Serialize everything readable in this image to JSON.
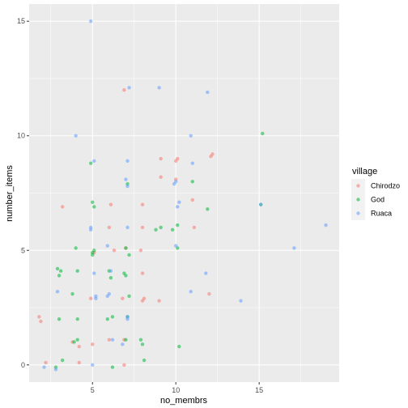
{
  "chart_data": {
    "type": "scatter",
    "xlabel": "no_membrs",
    "ylabel": "number_items",
    "xlim": [
      1.2,
      19.8
    ],
    "ylim": [
      -0.75,
      15.75
    ],
    "x_ticks": [
      5,
      10,
      15
    ],
    "y_ticks": [
      0,
      5,
      10,
      15
    ],
    "grid": true,
    "legend": {
      "title": "village",
      "placement": "right"
    },
    "series": [
      {
        "name": "Chirodzo",
        "color": "#F8766D",
        "points": [
          [
            1.8,
            2.1
          ],
          [
            1.9,
            1.9
          ],
          [
            2.2,
            0.1
          ],
          [
            3.2,
            6.9
          ],
          [
            3.8,
            1.0
          ],
          [
            4.2,
            0.8
          ],
          [
            4.2,
            0.1
          ],
          [
            4.9,
            2.9
          ],
          [
            5.0,
            0.9
          ],
          [
            5.1,
            4.9
          ],
          [
            6.0,
            6.0
          ],
          [
            6.0,
            1.1
          ],
          [
            6.1,
            7.0
          ],
          [
            6.3,
            5.0
          ],
          [
            6.8,
            2.9
          ],
          [
            6.9,
            1.1
          ],
          [
            6.9,
            0.0
          ],
          [
            6.9,
            12.0
          ],
          [
            7.0,
            5.1
          ],
          [
            7.9,
            5.0
          ],
          [
            8.0,
            6.0
          ],
          [
            8.0,
            4.0
          ],
          [
            8.1,
            2.9
          ],
          [
            8.0,
            2.8
          ],
          [
            8.0,
            7.0
          ],
          [
            9.0,
            2.8
          ],
          [
            9.1,
            8.2
          ],
          [
            9.1,
            9.0
          ],
          [
            10.0,
            8.1
          ],
          [
            10.0,
            8.9
          ],
          [
            10.1,
            9.0
          ],
          [
            11.0,
            7.2
          ],
          [
            11.1,
            6.0
          ],
          [
            12.0,
            3.1
          ],
          [
            12.1,
            9.1
          ],
          [
            12.2,
            9.2
          ]
        ]
      },
      {
        "name": "God",
        "color": "#00BA38",
        "points": [
          [
            2.9,
            4.2
          ],
          [
            3.0,
            3.9
          ],
          [
            3.0,
            2.0
          ],
          [
            3.1,
            4.1
          ],
          [
            3.2,
            0.2
          ],
          [
            2.8,
            -0.1
          ],
          [
            3.8,
            3.1
          ],
          [
            4.0,
            5.1
          ],
          [
            4.1,
            4.1
          ],
          [
            4.1,
            2.0
          ],
          [
            4.1,
            1.1
          ],
          [
            3.9,
            1.0
          ],
          [
            4.9,
            8.8
          ],
          [
            5.0,
            7.1
          ],
          [
            5.0,
            4.8
          ],
          [
            5.0,
            4.9
          ],
          [
            5.1,
            5.0
          ],
          [
            5.1,
            6.9
          ],
          [
            5.9,
            2.0
          ],
          [
            6.0,
            4.1
          ],
          [
            6.1,
            3.8
          ],
          [
            6.2,
            2.1
          ],
          [
            6.2,
            -0.1
          ],
          [
            6.9,
            4.0
          ],
          [
            7.0,
            3.9
          ],
          [
            7.0,
            5.1
          ],
          [
            7.0,
            1.1
          ],
          [
            7.1,
            2.1
          ],
          [
            7.1,
            7.9
          ],
          [
            7.2,
            4.8
          ],
          [
            7.2,
            3.0
          ],
          [
            7.9,
            1.1
          ],
          [
            8.0,
            0.9
          ],
          [
            8.1,
            0.2
          ],
          [
            8.8,
            5.9
          ],
          [
            9.1,
            6.0
          ],
          [
            9.8,
            5.9
          ],
          [
            10.1,
            6.1
          ],
          [
            10.1,
            5.1
          ],
          [
            10.2,
            0.8
          ],
          [
            11.0,
            8.0
          ],
          [
            11.9,
            6.8
          ],
          [
            15.1,
            7.0
          ],
          [
            15.2,
            10.1
          ]
        ]
      },
      {
        "name": "Ruaca",
        "color": "#619CFF",
        "points": [
          [
            2.1,
            -0.1
          ],
          [
            2.8,
            -0.2
          ],
          [
            2.9,
            3.2
          ],
          [
            4.0,
            10.0
          ],
          [
            4.9,
            6.0
          ],
          [
            4.9,
            5.9
          ],
          [
            5.1,
            8.9
          ],
          [
            5.1,
            4.0
          ],
          [
            5.2,
            3.0
          ],
          [
            5.2,
            2.9
          ],
          [
            5.0,
            0.0
          ],
          [
            5.9,
            5.2
          ],
          [
            5.9,
            3.0
          ],
          [
            6.0,
            3.1
          ],
          [
            6.1,
            4.1
          ],
          [
            6.2,
            1.1
          ],
          [
            6.8,
            0.9
          ],
          [
            7.0,
            8.1
          ],
          [
            7.1,
            7.8
          ],
          [
            7.1,
            8.9
          ],
          [
            7.1,
            6.0
          ],
          [
            7.1,
            2.1
          ],
          [
            7.1,
            2.0
          ],
          [
            7.2,
            12.1
          ],
          [
            4.9,
            15.0
          ],
          [
            9.0,
            12.1
          ],
          [
            9.9,
            7.9
          ],
          [
            10.0,
            8.0
          ],
          [
            10.2,
            7.1
          ],
          [
            10.1,
            6.9
          ],
          [
            10.0,
            5.2
          ],
          [
            10.9,
            10.0
          ],
          [
            11.0,
            8.8
          ],
          [
            10.9,
            3.2
          ],
          [
            11.8,
            4.0
          ],
          [
            11.9,
            11.9
          ],
          [
            13.9,
            2.8
          ],
          [
            15.1,
            7.0
          ],
          [
            17.1,
            5.1
          ],
          [
            19.0,
            6.1
          ]
        ]
      }
    ]
  }
}
